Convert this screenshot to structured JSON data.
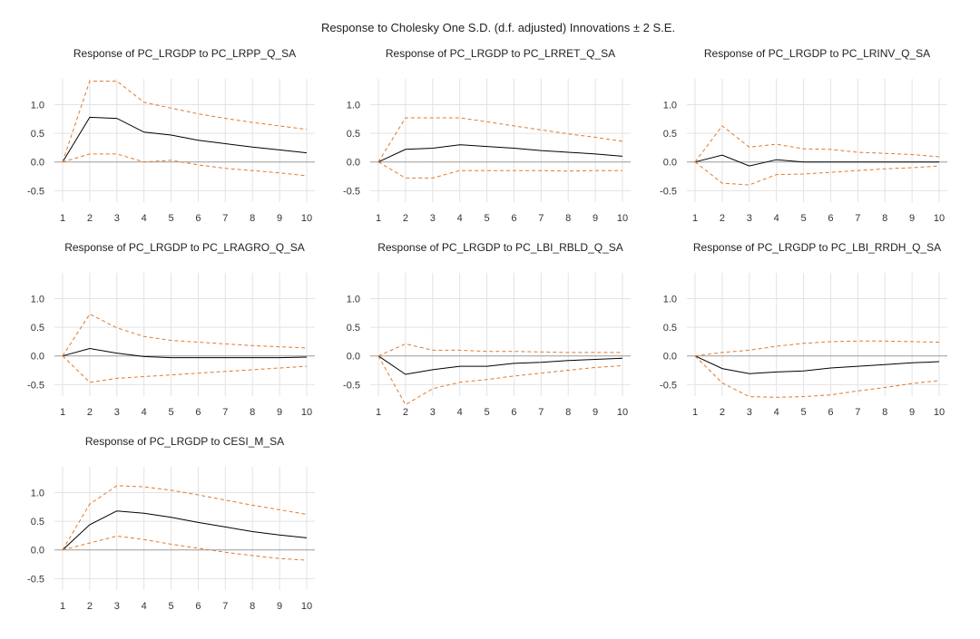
{
  "figure": {
    "title": "Response to Cholesky One S.D. (d.f. adjusted) Innovations ± 2 S.E.",
    "colors": {
      "response": "#000000",
      "bands": "#e07a2e",
      "grid": "#e3e3e3",
      "zero": "#9a9a9a"
    }
  },
  "chart_data": [
    {
      "type": "line",
      "title": "Response of PC_LRGDP to PC_LRPP_Q_SA",
      "x": [
        1,
        2,
        3,
        4,
        5,
        6,
        7,
        8,
        9,
        10
      ],
      "ylim": [
        -0.7,
        1.45
      ],
      "yticks": [
        -0.5,
        0.0,
        0.5,
        1.0
      ],
      "ytick_labels": [
        "-0.5",
        "0.0",
        "0.5",
        "1.0"
      ],
      "grid": true,
      "series": [
        {
          "role": "response",
          "values": [
            0.0,
            0.78,
            0.76,
            0.52,
            0.47,
            0.38,
            0.32,
            0.26,
            0.21,
            0.16
          ]
        },
        {
          "role": "upper",
          "values": [
            0.0,
            1.41,
            1.41,
            1.04,
            0.94,
            0.84,
            0.76,
            0.69,
            0.63,
            0.57
          ]
        },
        {
          "role": "lower",
          "values": [
            0.0,
            0.14,
            0.14,
            0.0,
            0.03,
            -0.05,
            -0.11,
            -0.15,
            -0.19,
            -0.24
          ]
        }
      ]
    },
    {
      "type": "line",
      "title": "Response of PC_LRGDP to PC_LRRET_Q_SA",
      "x": [
        1,
        2,
        3,
        4,
        5,
        6,
        7,
        8,
        9,
        10
      ],
      "ylim": [
        -0.7,
        1.45
      ],
      "yticks": [
        -0.5,
        0.0,
        0.5,
        1.0
      ],
      "ytick_labels": [
        "-0.5",
        "0.0",
        "0.5",
        "1.0"
      ],
      "grid": true,
      "series": [
        {
          "role": "response",
          "values": [
            0.0,
            0.22,
            0.24,
            0.3,
            0.27,
            0.24,
            0.2,
            0.17,
            0.14,
            0.1
          ]
        },
        {
          "role": "upper",
          "values": [
            0.0,
            0.77,
            0.77,
            0.77,
            0.7,
            0.63,
            0.56,
            0.49,
            0.43,
            0.36
          ]
        },
        {
          "role": "lower",
          "values": [
            0.0,
            -0.28,
            -0.28,
            -0.15,
            -0.15,
            -0.15,
            -0.15,
            -0.16,
            -0.15,
            -0.15
          ]
        }
      ]
    },
    {
      "type": "line",
      "title": "Response of PC_LRGDP to PC_LRINV_Q_SA",
      "x": [
        1,
        2,
        3,
        4,
        5,
        6,
        7,
        8,
        9,
        10
      ],
      "ylim": [
        -0.7,
        1.45
      ],
      "yticks": [
        -0.5,
        0.0,
        0.5,
        1.0
      ],
      "ytick_labels": [
        "-0.5",
        "0.0",
        "0.5",
        "1.0"
      ],
      "grid": true,
      "series": [
        {
          "role": "response",
          "values": [
            0.0,
            0.12,
            -0.07,
            0.04,
            0.0,
            0.0,
            0.0,
            0.0,
            0.0,
            0.0
          ]
        },
        {
          "role": "upper",
          "values": [
            0.0,
            0.63,
            0.26,
            0.31,
            0.23,
            0.22,
            0.17,
            0.15,
            0.13,
            0.09
          ]
        },
        {
          "role": "lower",
          "values": [
            0.0,
            -0.37,
            -0.4,
            -0.22,
            -0.21,
            -0.18,
            -0.15,
            -0.12,
            -0.1,
            -0.07
          ]
        }
      ]
    },
    {
      "type": "line",
      "title": "Response of PC_LRGDP to PC_LRAGRO_Q_SA",
      "x": [
        1,
        2,
        3,
        4,
        5,
        6,
        7,
        8,
        9,
        10
      ],
      "ylim": [
        -0.7,
        1.45
      ],
      "yticks": [
        -0.5,
        0.0,
        0.5,
        1.0
      ],
      "ytick_labels": [
        "-0.5",
        "0.0",
        "0.5",
        "1.0"
      ],
      "grid": true,
      "series": [
        {
          "role": "response",
          "values": [
            0.0,
            0.13,
            0.05,
            -0.01,
            -0.03,
            -0.03,
            -0.03,
            -0.03,
            -0.03,
            -0.02
          ]
        },
        {
          "role": "upper",
          "values": [
            0.0,
            0.73,
            0.49,
            0.34,
            0.27,
            0.24,
            0.21,
            0.18,
            0.16,
            0.14
          ]
        },
        {
          "role": "lower",
          "values": [
            0.0,
            -0.46,
            -0.39,
            -0.36,
            -0.33,
            -0.3,
            -0.27,
            -0.24,
            -0.21,
            -0.18
          ]
        }
      ]
    },
    {
      "type": "line",
      "title": "Response of PC_LRGDP to PC_LBI_RBLD_Q_SA",
      "x": [
        1,
        2,
        3,
        4,
        5,
        6,
        7,
        8,
        9,
        10
      ],
      "ylim": [
        -0.7,
        1.45
      ],
      "yticks": [
        -0.5,
        0.0,
        0.5,
        1.0
      ],
      "ytick_labels": [
        "-0.5",
        "0.0",
        "0.5",
        "1.0"
      ],
      "grid": true,
      "series": [
        {
          "role": "response",
          "values": [
            0.0,
            -0.32,
            -0.24,
            -0.18,
            -0.18,
            -0.13,
            -0.11,
            -0.08,
            -0.06,
            -0.04
          ]
        },
        {
          "role": "upper",
          "values": [
            0.0,
            0.21,
            0.1,
            0.1,
            0.08,
            0.08,
            0.07,
            0.06,
            0.06,
            0.06
          ]
        },
        {
          "role": "lower",
          "values": [
            0.0,
            -0.85,
            -0.57,
            -0.46,
            -0.41,
            -0.35,
            -0.3,
            -0.25,
            -0.2,
            -0.17
          ]
        }
      ]
    },
    {
      "type": "line",
      "title": "Response of PC_LRGDP to PC_LBI_RRDH_Q_SA",
      "x": [
        1,
        2,
        3,
        4,
        5,
        6,
        7,
        8,
        9,
        10
      ],
      "ylim": [
        -0.7,
        1.45
      ],
      "yticks": [
        -0.5,
        0.0,
        0.5,
        1.0
      ],
      "ytick_labels": [
        "-0.5",
        "0.0",
        "0.5",
        "1.0"
      ],
      "grid": true,
      "series": [
        {
          "role": "response",
          "values": [
            0.0,
            -0.22,
            -0.31,
            -0.28,
            -0.26,
            -0.21,
            -0.18,
            -0.15,
            -0.12,
            -0.1
          ]
        },
        {
          "role": "upper",
          "values": [
            0.0,
            0.06,
            0.1,
            0.17,
            0.22,
            0.25,
            0.26,
            0.26,
            0.25,
            0.24
          ]
        },
        {
          "role": "lower",
          "values": [
            0.0,
            -0.47,
            -0.71,
            -0.72,
            -0.71,
            -0.68,
            -0.61,
            -0.55,
            -0.48,
            -0.43
          ]
        }
      ]
    },
    {
      "type": "line",
      "title": "Response of PC_LRGDP to CESI_M_SA",
      "x": [
        1,
        2,
        3,
        4,
        5,
        6,
        7,
        8,
        9,
        10
      ],
      "ylim": [
        -0.7,
        1.45
      ],
      "yticks": [
        -0.5,
        0.0,
        0.5,
        1.0
      ],
      "ytick_labels": [
        "-0.5",
        "0.0",
        "0.5",
        "1.0"
      ],
      "grid": true,
      "series": [
        {
          "role": "response",
          "values": [
            0.0,
            0.44,
            0.68,
            0.64,
            0.57,
            0.48,
            0.4,
            0.32,
            0.26,
            0.21
          ]
        },
        {
          "role": "upper",
          "values": [
            0.0,
            0.8,
            1.12,
            1.1,
            1.04,
            0.96,
            0.87,
            0.78,
            0.7,
            0.62
          ]
        },
        {
          "role": "lower",
          "values": [
            0.0,
            0.12,
            0.24,
            0.18,
            0.1,
            0.03,
            -0.04,
            -0.1,
            -0.15,
            -0.18
          ]
        }
      ]
    }
  ]
}
